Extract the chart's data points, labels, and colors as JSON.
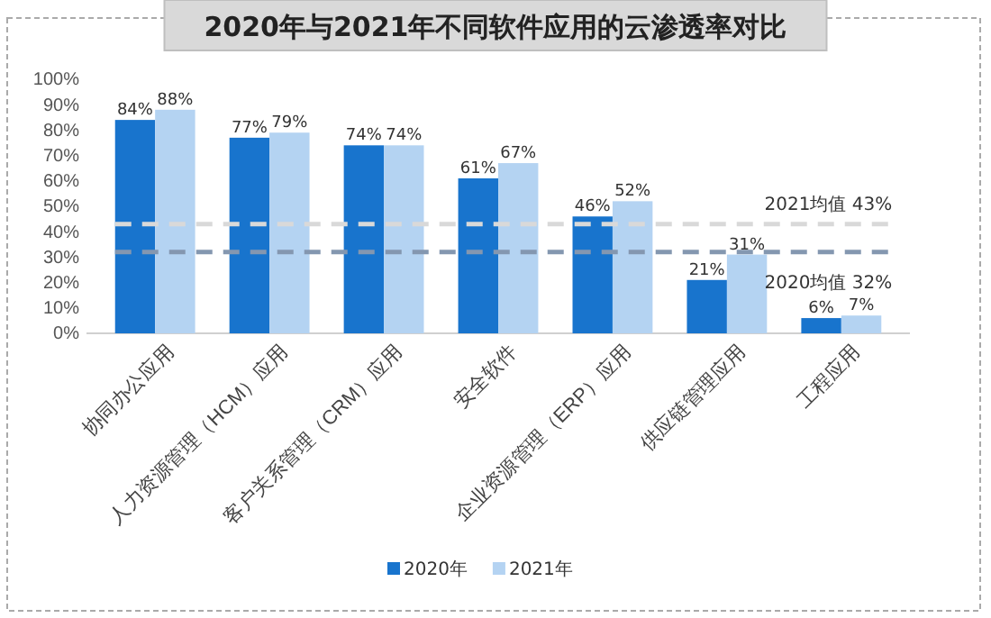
{
  "chart_data": {
    "type": "bar",
    "title": "2020年与2021年不同软件应用的云渗透率对比",
    "categories": [
      "协同办公应用",
      "人力资源管理（HCM）应用",
      "客户关系管理（CRM）应用",
      "安全软件",
      "企业资源管理（ERP）应用",
      "供应链管理应用",
      "工程应用"
    ],
    "series": [
      {
        "name": "2020年",
        "color": "#1874cd",
        "values": [
          84,
          77,
          74,
          61,
          46,
          21,
          6
        ]
      },
      {
        "name": "2021年",
        "color": "#b4d3f2",
        "values": [
          88,
          79,
          74,
          67,
          52,
          31,
          7
        ]
      }
    ],
    "ylim": [
      0,
      100
    ],
    "yticks": [
      {
        "value": 0,
        "label": "0%"
      },
      {
        "value": 10,
        "label": "10%"
      },
      {
        "value": 20,
        "label": "20%"
      },
      {
        "value": 30,
        "label": "30%"
      },
      {
        "value": 40,
        "label": "40%"
      },
      {
        "value": 50,
        "label": "50%"
      },
      {
        "value": 60,
        "label": "60%"
      },
      {
        "value": 70,
        "label": "70%"
      },
      {
        "value": 80,
        "label": "80%"
      },
      {
        "value": 90,
        "label": "90%"
      },
      {
        "value": 100,
        "label": "100%"
      }
    ],
    "value_labels": [
      [
        "84%",
        "77%",
        "74%",
        "61%",
        "46%",
        "21%",
        "6%"
      ],
      [
        "88%",
        "79%",
        "74%",
        "67%",
        "52%",
        "31%",
        "7%"
      ]
    ],
    "ref_lines": [
      {
        "axis": "y",
        "value": 43,
        "label": "2021均值 43%",
        "color": "#d9d9d9",
        "line_style": "dashed"
      },
      {
        "axis": "y",
        "value": 32,
        "label": "2020均值 32%",
        "color": "#8497b0",
        "line_style": "dashed"
      }
    ],
    "grid": false,
    "legend": "bottom"
  }
}
